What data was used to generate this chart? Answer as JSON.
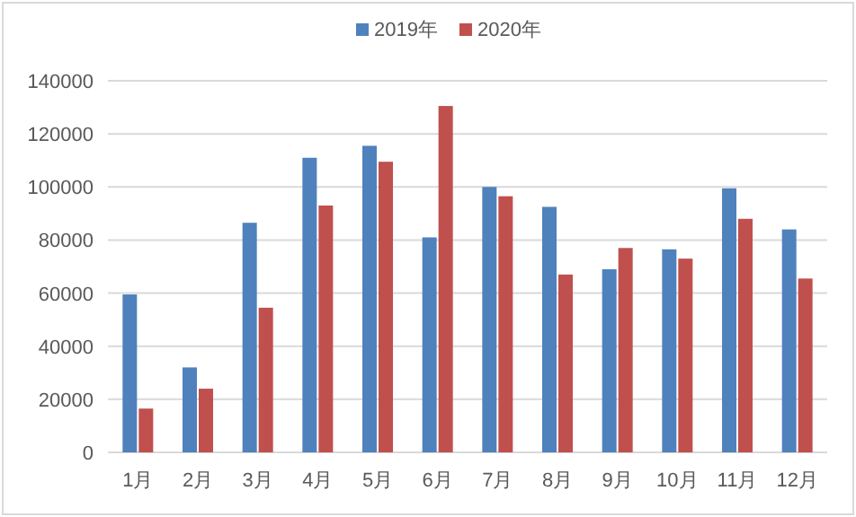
{
  "chart_data": {
    "type": "bar",
    "categories": [
      "1月",
      "2月",
      "3月",
      "4月",
      "5月",
      "6月",
      "7月",
      "8月",
      "9月",
      "10月",
      "11月",
      "12月"
    ],
    "series": [
      {
        "name": "2019年",
        "color": "#4f81bd",
        "values": [
          59500,
          32000,
          86500,
          111000,
          115500,
          81000,
          100000,
          92500,
          69000,
          76500,
          99500,
          84000
        ]
      },
      {
        "name": "2020年",
        "color": "#c0504d",
        "values": [
          16500,
          24000,
          54500,
          93000,
          109500,
          130500,
          96500,
          67000,
          77000,
          73000,
          88000,
          65500
        ]
      }
    ],
    "ylim": [
      0,
      140000
    ],
    "yticks": [
      0,
      20000,
      40000,
      60000,
      80000,
      100000,
      120000,
      140000
    ],
    "grid": "y",
    "legend": "top"
  }
}
